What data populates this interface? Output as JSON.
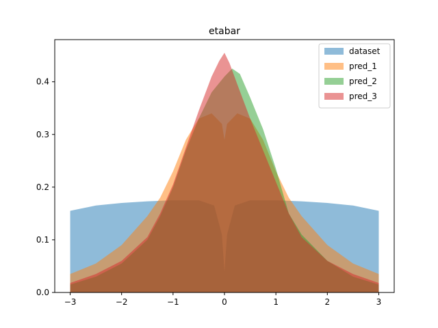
{
  "chart_data": {
    "type": "area",
    "title": "etabar",
    "xlabel": "",
    "ylabel": "",
    "xlim": [
      -3.3,
      3.3
    ],
    "ylim": [
      0,
      0.48
    ],
    "xticks": [
      -3,
      -2,
      -1,
      0,
      1,
      2,
      3
    ],
    "xtick_labels": [
      "−3",
      "−2",
      "−1",
      "0",
      "1",
      "2",
      "3"
    ],
    "yticks": [
      0.0,
      0.1,
      0.2,
      0.3,
      0.4
    ],
    "ytick_labels": [
      "0.0",
      "0.1",
      "0.2",
      "0.3",
      "0.4"
    ],
    "grid": false,
    "legend_position": "top-right",
    "alpha": 0.5,
    "series": [
      {
        "name": "dataset",
        "color": "#1f77b4",
        "x": [
          -3.0,
          -2.5,
          -2.0,
          -1.5,
          -1.0,
          -0.5,
          -0.2,
          -0.05,
          0.0,
          0.05,
          0.2,
          0.5,
          1.0,
          1.5,
          2.0,
          2.5,
          3.0
        ],
        "values": [
          0.155,
          0.165,
          0.17,
          0.173,
          0.175,
          0.175,
          0.165,
          0.11,
          0.04,
          0.11,
          0.165,
          0.175,
          0.175,
          0.173,
          0.17,
          0.165,
          0.155
        ]
      },
      {
        "name": "pred_1",
        "color": "#ff7f0e",
        "x": [
          -3.0,
          -2.5,
          -2.0,
          -1.5,
          -1.25,
          -1.0,
          -0.75,
          -0.5,
          -0.25,
          -0.05,
          0.0,
          0.05,
          0.25,
          0.5,
          0.75,
          1.0,
          1.25,
          1.5,
          2.0,
          2.5,
          3.0
        ],
        "values": [
          0.035,
          0.055,
          0.09,
          0.145,
          0.18,
          0.23,
          0.29,
          0.33,
          0.34,
          0.32,
          0.29,
          0.32,
          0.34,
          0.33,
          0.29,
          0.23,
          0.18,
          0.145,
          0.09,
          0.055,
          0.035
        ]
      },
      {
        "name": "pred_2",
        "color": "#2ca02c",
        "x": [
          -3.0,
          -2.5,
          -2.0,
          -1.5,
          -1.25,
          -1.0,
          -0.75,
          -0.5,
          -0.25,
          0.0,
          0.15,
          0.3,
          0.5,
          0.75,
          1.0,
          1.25,
          1.5,
          2.0,
          2.5,
          3.0
        ],
        "values": [
          0.015,
          0.03,
          0.055,
          0.1,
          0.145,
          0.2,
          0.27,
          0.33,
          0.38,
          0.41,
          0.425,
          0.415,
          0.37,
          0.31,
          0.235,
          0.15,
          0.11,
          0.06,
          0.03,
          0.015
        ]
      },
      {
        "name": "pred_3",
        "color": "#d62728",
        "x": [
          -3.0,
          -2.5,
          -2.0,
          -1.5,
          -1.25,
          -1.0,
          -0.75,
          -0.5,
          -0.25,
          -0.1,
          0.0,
          0.1,
          0.25,
          0.5,
          0.75,
          1.0,
          1.25,
          1.5,
          2.0,
          2.5,
          3.0
        ],
        "values": [
          0.018,
          0.035,
          0.06,
          0.105,
          0.15,
          0.205,
          0.275,
          0.345,
          0.41,
          0.44,
          0.455,
          0.435,
          0.395,
          0.33,
          0.27,
          0.21,
          0.15,
          0.105,
          0.06,
          0.035,
          0.018
        ]
      }
    ]
  }
}
